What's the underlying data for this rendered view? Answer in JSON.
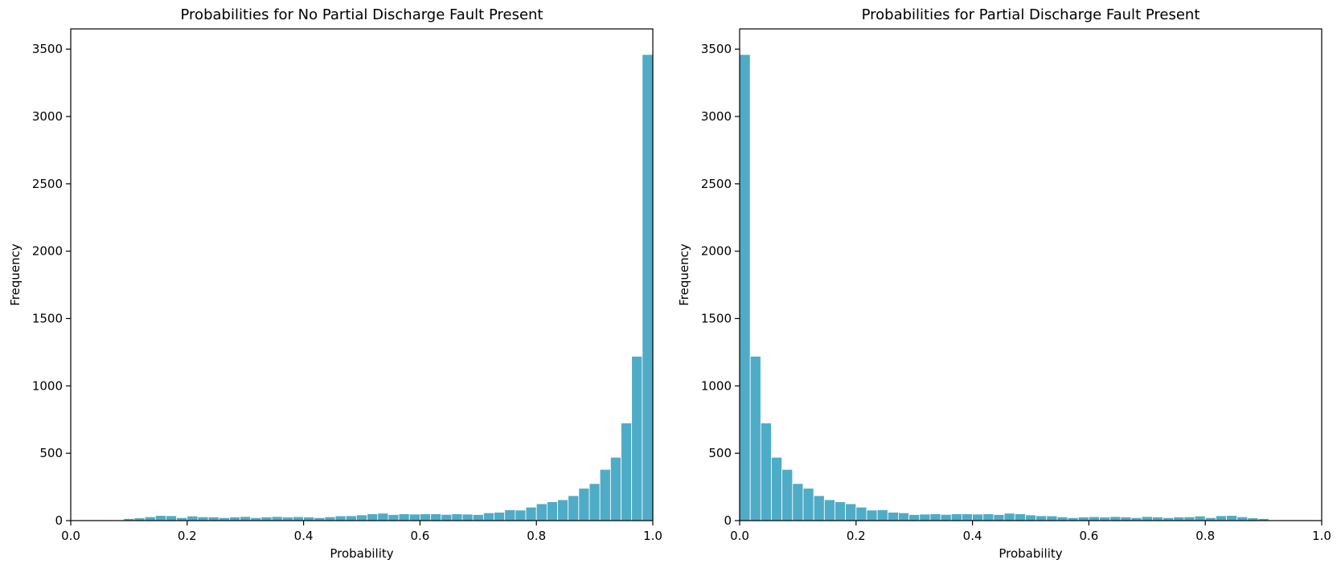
{
  "chart_data": [
    {
      "type": "bar",
      "title": "Probabilities for No Partial Discharge Fault Present",
      "xlabel": "Probability",
      "ylabel": "Frequency",
      "xlim": [
        0.0,
        1.0
      ],
      "ylim": [
        0,
        3650
      ],
      "xticks": [
        "0.0",
        "0.2",
        "0.4",
        "0.6",
        "0.8",
        "1.0"
      ],
      "yticks": [
        "0",
        "500",
        "1000",
        "1500",
        "2000",
        "2500",
        "3000",
        "3500"
      ],
      "grid": false,
      "bar_color": "#4FACC6",
      "bin_width": 0.01818,
      "bin_starts": [
        0.0909,
        0.1091,
        0.1273,
        0.1455,
        0.1636,
        0.1818,
        0.2,
        0.2182,
        0.2364,
        0.2545,
        0.2727,
        0.2909,
        0.3091,
        0.3273,
        0.3455,
        0.3636,
        0.3818,
        0.4,
        0.4182,
        0.4364,
        0.4545,
        0.4727,
        0.4909,
        0.5091,
        0.5273,
        0.5455,
        0.5636,
        0.5818,
        0.6,
        0.6182,
        0.6364,
        0.6545,
        0.6727,
        0.6909,
        0.7091,
        0.7273,
        0.7455,
        0.7636,
        0.7818,
        0.8,
        0.8182,
        0.8364,
        0.8545,
        0.8727,
        0.8909,
        0.9091,
        0.9273,
        0.9455,
        0.9636,
        0.9818
      ],
      "values": [
        15,
        20,
        28,
        38,
        36,
        22,
        34,
        28,
        27,
        22,
        27,
        30,
        22,
        27,
        30,
        26,
        29,
        27,
        22,
        28,
        35,
        36,
        42,
        50,
        55,
        45,
        50,
        48,
        50,
        50,
        46,
        50,
        48,
        45,
        58,
        62,
        80,
        78,
        100,
        125,
        140,
        155,
        185,
        240,
        275,
        380,
        470,
        725,
        1220,
        3460
      ]
    },
    {
      "type": "bar",
      "title": "Probabilities for Partial Discharge Fault Present",
      "xlabel": "Probability",
      "ylabel": "Frequency",
      "xlim": [
        0.0,
        1.0
      ],
      "ylim": [
        0,
        3650
      ],
      "xticks": [
        "0.0",
        "0.2",
        "0.4",
        "0.6",
        "0.8",
        "1.0"
      ],
      "yticks": [
        "0",
        "500",
        "1000",
        "1500",
        "2000",
        "2500",
        "3000",
        "3500"
      ],
      "grid": false,
      "bar_color": "#4FACC6",
      "bin_width": 0.01818,
      "bin_starts": [
        0.0,
        0.0182,
        0.0364,
        0.0545,
        0.0727,
        0.0909,
        0.1091,
        0.1273,
        0.1455,
        0.1636,
        0.1818,
        0.2,
        0.2182,
        0.2364,
        0.2545,
        0.2727,
        0.2909,
        0.3091,
        0.3273,
        0.3455,
        0.3636,
        0.3818,
        0.4,
        0.4182,
        0.4364,
        0.4545,
        0.4727,
        0.4909,
        0.5091,
        0.5273,
        0.5455,
        0.5636,
        0.5818,
        0.6,
        0.6182,
        0.6364,
        0.6545,
        0.6727,
        0.6909,
        0.7091,
        0.7273,
        0.7455,
        0.7636,
        0.7818,
        0.8,
        0.8182,
        0.8364,
        0.8545,
        0.8727,
        0.8909
      ],
      "values": [
        3460,
        1220,
        725,
        470,
        380,
        275,
        240,
        185,
        155,
        140,
        125,
        100,
        78,
        80,
        62,
        58,
        45,
        48,
        50,
        46,
        50,
        50,
        48,
        50,
        45,
        55,
        50,
        42,
        36,
        35,
        28,
        22,
        27,
        29,
        26,
        30,
        27,
        22,
        30,
        27,
        22,
        27,
        28,
        34,
        22,
        36,
        38,
        28,
        20,
        15
      ]
    }
  ]
}
